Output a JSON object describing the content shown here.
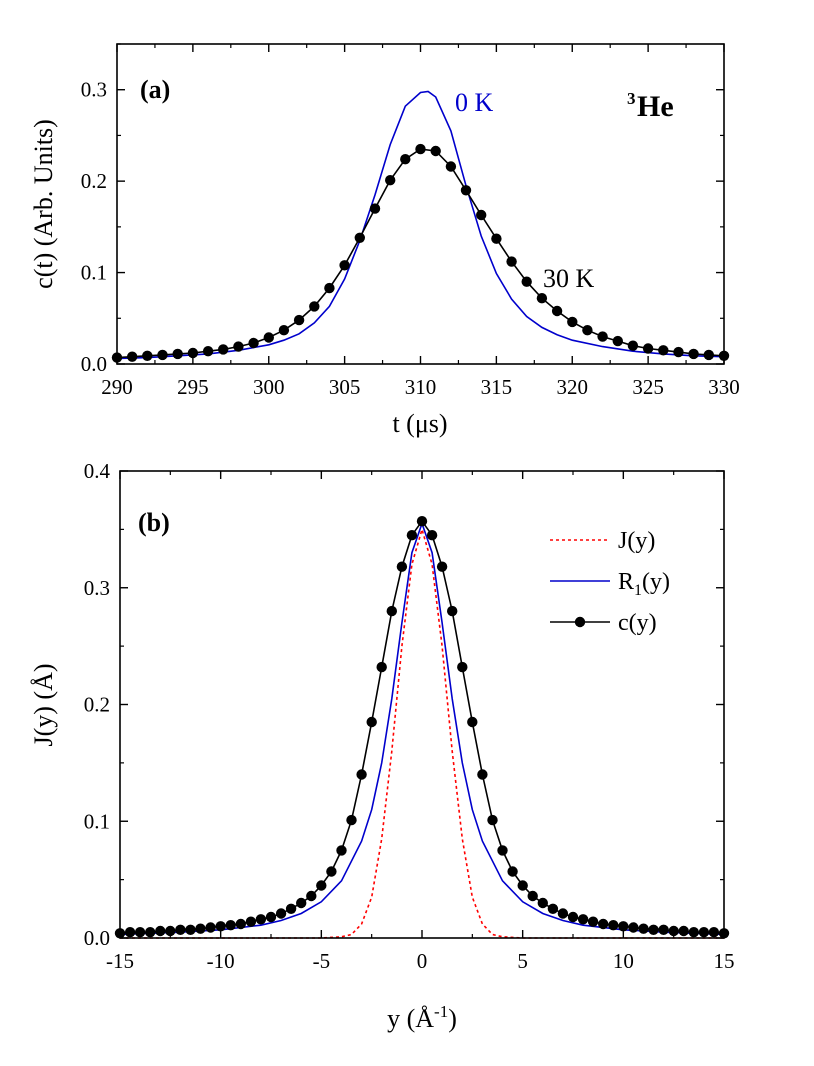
{
  "chart_data": [
    {
      "panel": "(a)",
      "type": "line",
      "xlabel": "t (μs)",
      "ylabel": "c(t)  (Arb. Units)",
      "xlim": [
        290,
        330
      ],
      "ylim": [
        0.0,
        0.35
      ],
      "xticks": [
        290,
        295,
        300,
        305,
        310,
        315,
        320,
        325,
        330
      ],
      "xtick_labels": [
        "290",
        "295",
        "300",
        "305",
        "310",
        "315",
        "320",
        "325",
        "330"
      ],
      "yticks": [
        0.0,
        0.1,
        0.2,
        0.3
      ],
      "ytick_labels": [
        "0.0",
        "0.1",
        "0.2",
        "0.3"
      ],
      "annotations": {
        "species_sup": "3",
        "species": "He",
        "label_0K": "0 K",
        "label_30K": "30 K"
      },
      "series": [
        {
          "name": "0 K",
          "color": "#0000cc",
          "style": "solid",
          "x": [
            290,
            292,
            294,
            296,
            298,
            300,
            301,
            302,
            303,
            304,
            305,
            306,
            307,
            308,
            309,
            310,
            310.5,
            311,
            312,
            313,
            314,
            315,
            316,
            317,
            318,
            319,
            320,
            322,
            324,
            326,
            328,
            330
          ],
          "y": [
            0.006,
            0.007,
            0.009,
            0.011,
            0.015,
            0.021,
            0.026,
            0.033,
            0.045,
            0.063,
            0.093,
            0.135,
            0.185,
            0.24,
            0.282,
            0.297,
            0.298,
            0.292,
            0.255,
            0.195,
            0.14,
            0.099,
            0.071,
            0.052,
            0.04,
            0.032,
            0.026,
            0.019,
            0.014,
            0.011,
            0.009,
            0.008
          ]
        },
        {
          "name": "30 K",
          "color": "#000000",
          "style": "solid-markers",
          "x": [
            290,
            291,
            292,
            293,
            294,
            295,
            296,
            297,
            298,
            299,
            300,
            301,
            302,
            303,
            304,
            305,
            306,
            307,
            308,
            309,
            310,
            311,
            312,
            313,
            314,
            315,
            316,
            317,
            318,
            319,
            320,
            321,
            322,
            323,
            324,
            325,
            326,
            327,
            328,
            329,
            330
          ],
          "y": [
            0.007,
            0.008,
            0.009,
            0.01,
            0.011,
            0.012,
            0.014,
            0.016,
            0.019,
            0.023,
            0.029,
            0.037,
            0.048,
            0.063,
            0.083,
            0.108,
            0.138,
            0.17,
            0.201,
            0.224,
            0.235,
            0.233,
            0.216,
            0.19,
            0.163,
            0.137,
            0.112,
            0.09,
            0.072,
            0.058,
            0.046,
            0.037,
            0.03,
            0.025,
            0.02,
            0.017,
            0.015,
            0.013,
            0.011,
            0.01,
            0.009
          ]
        }
      ]
    },
    {
      "panel": "(b)",
      "type": "line",
      "xlabel": "y (Å⁻¹)",
      "ylabel": "J(y) (Å)",
      "xlim": [
        -15,
        15
      ],
      "ylim": [
        0.0,
        0.4
      ],
      "xticks": [
        -15,
        -10,
        -5,
        0,
        5,
        10,
        15
      ],
      "xtick_labels": [
        "-15",
        "-10",
        "-5",
        "0",
        "5",
        "10",
        "15"
      ],
      "yticks": [
        0.0,
        0.1,
        0.2,
        0.3,
        0.4
      ],
      "ytick_labels": [
        "0.0",
        "0.1",
        "0.2",
        "0.3",
        "0.4"
      ],
      "legend_position": "top-right",
      "series": [
        {
          "name": "J(y)",
          "color": "#ff0000",
          "style": "dotted",
          "x": [
            -15,
            -5,
            -4,
            -3.5,
            -3,
            -2.5,
            -2,
            -1.5,
            -1,
            -0.5,
            0,
            0.5,
            1,
            1.5,
            2,
            2.5,
            3,
            3.5,
            4,
            5,
            15
          ],
          "y": [
            0.0,
            0.0,
            0.001,
            0.003,
            0.012,
            0.035,
            0.085,
            0.16,
            0.25,
            0.32,
            0.35,
            0.32,
            0.25,
            0.16,
            0.085,
            0.035,
            0.012,
            0.003,
            0.001,
            0.0,
            0.0
          ]
        },
        {
          "name": "R1(y)",
          "color": "#0000cc",
          "style": "solid",
          "x": [
            -15,
            -12,
            -10,
            -8,
            -7,
            -6,
            -5,
            -4,
            -3,
            -2.5,
            -2,
            -1.5,
            -1,
            -0.5,
            0,
            0.5,
            1,
            1.5,
            2,
            2.5,
            3,
            4,
            5,
            6,
            7,
            8,
            10,
            12,
            15
          ],
          "y": [
            0.003,
            0.005,
            0.007,
            0.011,
            0.015,
            0.021,
            0.031,
            0.049,
            0.083,
            0.11,
            0.15,
            0.205,
            0.27,
            0.33,
            0.355,
            0.33,
            0.27,
            0.205,
            0.15,
            0.11,
            0.083,
            0.049,
            0.031,
            0.021,
            0.015,
            0.011,
            0.007,
            0.005,
            0.003
          ]
        },
        {
          "name": "c(y)",
          "color": "#000000",
          "style": "solid-markers",
          "x": [
            -15,
            -14.5,
            -14,
            -13.5,
            -13,
            -12.5,
            -12,
            -11.5,
            -11,
            -10.5,
            -10,
            -9.5,
            -9,
            -8.5,
            -8,
            -7.5,
            -7,
            -6.5,
            -6,
            -5.5,
            -5,
            -4.5,
            -4,
            -3.5,
            -3,
            -2.5,
            -2,
            -1.5,
            -1,
            -0.5,
            0,
            0.5,
            1,
            1.5,
            2,
            2.5,
            3,
            3.5,
            4,
            4.5,
            5,
            5.5,
            6,
            6.5,
            7,
            7.5,
            8,
            8.5,
            9,
            9.5,
            10,
            10.5,
            11,
            11.5,
            12,
            12.5,
            13,
            13.5,
            14,
            14.5,
            15
          ],
          "y": [
            0.004,
            0.005,
            0.005,
            0.005,
            0.006,
            0.006,
            0.007,
            0.007,
            0.008,
            0.009,
            0.01,
            0.011,
            0.012,
            0.014,
            0.016,
            0.018,
            0.021,
            0.025,
            0.03,
            0.036,
            0.045,
            0.057,
            0.075,
            0.101,
            0.14,
            0.185,
            0.232,
            0.28,
            0.318,
            0.345,
            0.357,
            0.345,
            0.318,
            0.28,
            0.232,
            0.185,
            0.14,
            0.101,
            0.075,
            0.057,
            0.045,
            0.036,
            0.03,
            0.025,
            0.021,
            0.018,
            0.016,
            0.014,
            0.012,
            0.011,
            0.01,
            0.009,
            0.008,
            0.007,
            0.007,
            0.006,
            0.006,
            0.005,
            0.005,
            0.005,
            0.004
          ]
        }
      ]
    }
  ]
}
